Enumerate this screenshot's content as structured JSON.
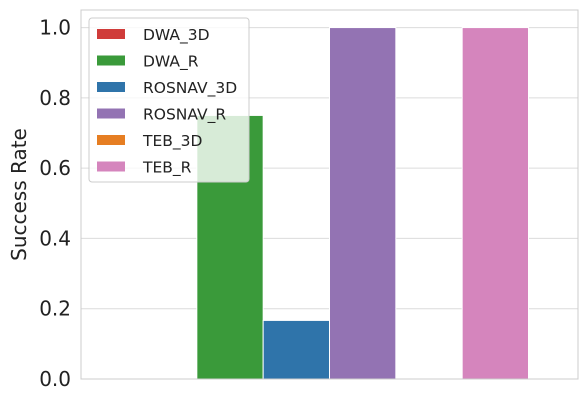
{
  "chart_data": {
    "type": "bar",
    "title": "",
    "xlabel": "",
    "ylabel": "Success Rate",
    "ylim": [
      0,
      1.05
    ],
    "yticks": [
      "0.0",
      "0.2",
      "0.4",
      "0.6",
      "0.8",
      "1.0"
    ],
    "grid": true,
    "legend_position": "top-left",
    "series": [
      {
        "name": "DWA_3D",
        "color": "#d03c3a",
        "value": 0.0
      },
      {
        "name": "DWA_R",
        "color": "#3a9a3a",
        "value": 0.75
      },
      {
        "name": "ROSNAV_3D",
        "color": "#2f74aa",
        "value": 0.1667
      },
      {
        "name": "ROSNAV_R",
        "color": "#9373b3",
        "value": 1.0
      },
      {
        "name": "TEB_3D",
        "color": "#e67e22",
        "value": 0.0
      },
      {
        "name": "TEB_R",
        "color": "#d585bd",
        "value": 1.0
      }
    ]
  }
}
